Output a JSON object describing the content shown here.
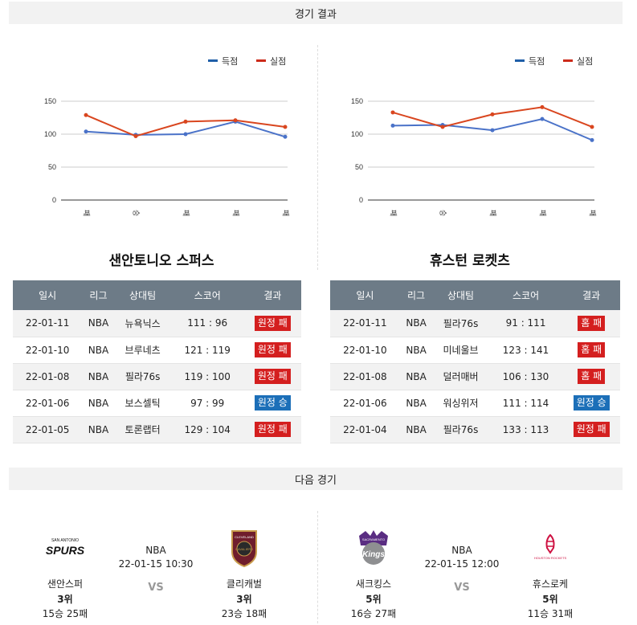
{
  "section_results": "경기 결과",
  "section_next": "다음 경기",
  "legend": {
    "score": "득점",
    "conceded": "실점",
    "score_color": "#1f5fa8",
    "conceded_color": "#cc2a1a"
  },
  "chart_data": [
    {
      "type": "line",
      "categories": [
        "패",
        "승",
        "패",
        "패",
        "패"
      ],
      "y_ticks": [
        0,
        50,
        100,
        150
      ],
      "ylim": [
        0,
        150
      ],
      "series": [
        {
          "name": "득점",
          "color": "#4a72c8",
          "values": [
            104,
            99,
            100,
            119,
            96
          ]
        },
        {
          "name": "실점",
          "color": "#d9461f",
          "values": [
            129,
            97,
            119,
            121,
            111
          ]
        }
      ]
    },
    {
      "type": "line",
      "categories": [
        "패",
        "승",
        "패",
        "패",
        "패"
      ],
      "y_ticks": [
        0,
        50,
        100,
        150
      ],
      "ylim": [
        0,
        150
      ],
      "series": [
        {
          "name": "득점",
          "color": "#4a72c8",
          "values": [
            113,
            114,
            106,
            123,
            91
          ]
        },
        {
          "name": "실점",
          "color": "#d9461f",
          "values": [
            133,
            111,
            130,
            141,
            111
          ]
        }
      ]
    }
  ],
  "teams": [
    {
      "title": "샌안토니오 스퍼스",
      "headers": [
        "일시",
        "리그",
        "상대팀",
        "스코어",
        "결과"
      ],
      "rows": [
        {
          "date": "22-01-11",
          "league": "NBA",
          "opponent": "뉴욕닉스",
          "score": "111 : 96",
          "result": "원정 패",
          "outcome": "loss"
        },
        {
          "date": "22-01-10",
          "league": "NBA",
          "opponent": "브루네츠",
          "score": "121 : 119",
          "result": "원정 패",
          "outcome": "loss"
        },
        {
          "date": "22-01-08",
          "league": "NBA",
          "opponent": "필라76s",
          "score": "119 : 100",
          "result": "원정 패",
          "outcome": "loss"
        },
        {
          "date": "22-01-06",
          "league": "NBA",
          "opponent": "보스셀틱",
          "score": "97 : 99",
          "result": "원정 승",
          "outcome": "win"
        },
        {
          "date": "22-01-05",
          "league": "NBA",
          "opponent": "토론랩터",
          "score": "129 : 104",
          "result": "원정 패",
          "outcome": "loss"
        }
      ]
    },
    {
      "title": "휴스턴 로켓츠",
      "headers": [
        "일시",
        "리그",
        "상대팀",
        "스코어",
        "결과"
      ],
      "rows": [
        {
          "date": "22-01-11",
          "league": "NBA",
          "opponent": "필라76s",
          "score": "91 : 111",
          "result": "홈 패",
          "outcome": "loss"
        },
        {
          "date": "22-01-10",
          "league": "NBA",
          "opponent": "미네울브",
          "score": "123 : 141",
          "result": "홈 패",
          "outcome": "loss"
        },
        {
          "date": "22-01-08",
          "league": "NBA",
          "opponent": "덜러매버",
          "score": "106 : 130",
          "result": "홈 패",
          "outcome": "loss"
        },
        {
          "date": "22-01-06",
          "league": "NBA",
          "opponent": "워싱위저",
          "score": "111 : 114",
          "result": "원정 승",
          "outcome": "win"
        },
        {
          "date": "22-01-04",
          "league": "NBA",
          "opponent": "필라76s",
          "score": "133 : 113",
          "result": "원정 패",
          "outcome": "loss"
        }
      ]
    }
  ],
  "next_games": [
    {
      "league": "NBA",
      "datetime": "22-01-15 10:30",
      "vs": "VS",
      "home": {
        "name": "샌안스퍼",
        "rank": "3위",
        "record": "15승 25패",
        "logo_text": "SPURS",
        "logo_sub": "SAN ANTONIO"
      },
      "away": {
        "name": "클리캐벌",
        "rank": "3위",
        "record": "23승 18패",
        "logo_text": "CAVALIERS",
        "logo_sub": "CLEVELAND"
      }
    },
    {
      "league": "NBA",
      "datetime": "22-01-15 12:00",
      "vs": "VS",
      "home": {
        "name": "새크킹스",
        "rank": "5위",
        "record": "16승 27패",
        "logo_text": "Kings",
        "logo_sub": "SACRAMENTO"
      },
      "away": {
        "name": "휴스로케",
        "rank": "5위",
        "record": "11승 31패",
        "logo_text": "HOUSTON ROCKETS",
        "logo_sub": ""
      }
    }
  ]
}
